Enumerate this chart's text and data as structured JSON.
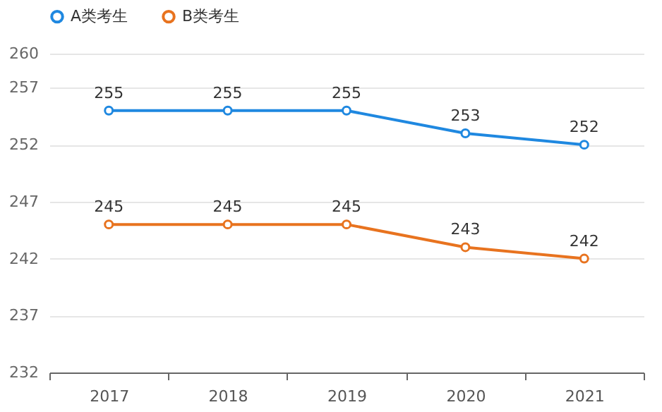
{
  "chart_data": {
    "type": "line",
    "categories": [
      "2017",
      "2018",
      "2019",
      "2020",
      "2021"
    ],
    "series": [
      {
        "name": "A类考生",
        "color": "#1f88e0",
        "values": [
          255,
          255,
          255,
          253,
          252
        ]
      },
      {
        "name": "B类考生",
        "color": "#e8731f",
        "values": [
          245,
          245,
          245,
          243,
          242
        ]
      }
    ],
    "ylim": [
      232,
      260
    ],
    "yticks": [
      232,
      237,
      242,
      247,
      252,
      257,
      260
    ],
    "grid": "y",
    "legend": "top",
    "marker": "circle",
    "data_labels": true
  }
}
